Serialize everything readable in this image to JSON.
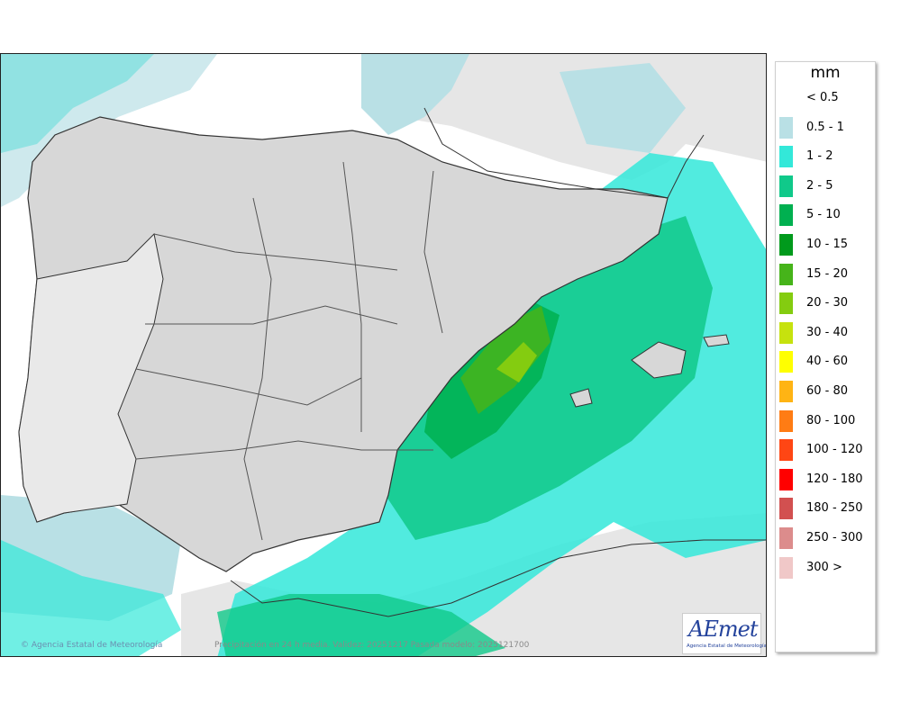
{
  "legend": {
    "unit": "mm",
    "items": [
      {
        "label": "< 0.5",
        "color": "#ffffff"
      },
      {
        "label": "0.5 - 1",
        "color": "#b9e0e5"
      },
      {
        "label": "1 - 2",
        "color": "#33e8d9"
      },
      {
        "label": "2 - 5",
        "color": "#10c98a"
      },
      {
        "label": "5 - 10",
        "color": "#00b050"
      },
      {
        "label": "10 - 15",
        "color": "#009a1c"
      },
      {
        "label": "15 - 20",
        "color": "#46b41a"
      },
      {
        "label": "20 - 30",
        "color": "#84cc10"
      },
      {
        "label": "30 - 40",
        "color": "#c6e20e"
      },
      {
        "label": "40 - 60",
        "color": "#ffff00"
      },
      {
        "label": "60 - 80",
        "color": "#ffb414"
      },
      {
        "label": "80 - 100",
        "color": "#ff7c14"
      },
      {
        "label": "100 - 120",
        "color": "#ff4614"
      },
      {
        "label": "120 - 180",
        "color": "#ff0000"
      },
      {
        "label": "180 - 250",
        "color": "#d25050"
      },
      {
        "label": "250 - 300",
        "color": "#dc8c8c"
      },
      {
        "label": "300 >",
        "color": "#f0c8c8"
      }
    ]
  },
  "map": {
    "credit_left": "Agencia Estatal de Meteorología",
    "caption": "Precipitación en 24 h media. Validez: 20251217 Pasada modelo: 2025121700",
    "logo_text": "AEmet",
    "logo_sub": "Agencia Estatal de Meteorología"
  }
}
